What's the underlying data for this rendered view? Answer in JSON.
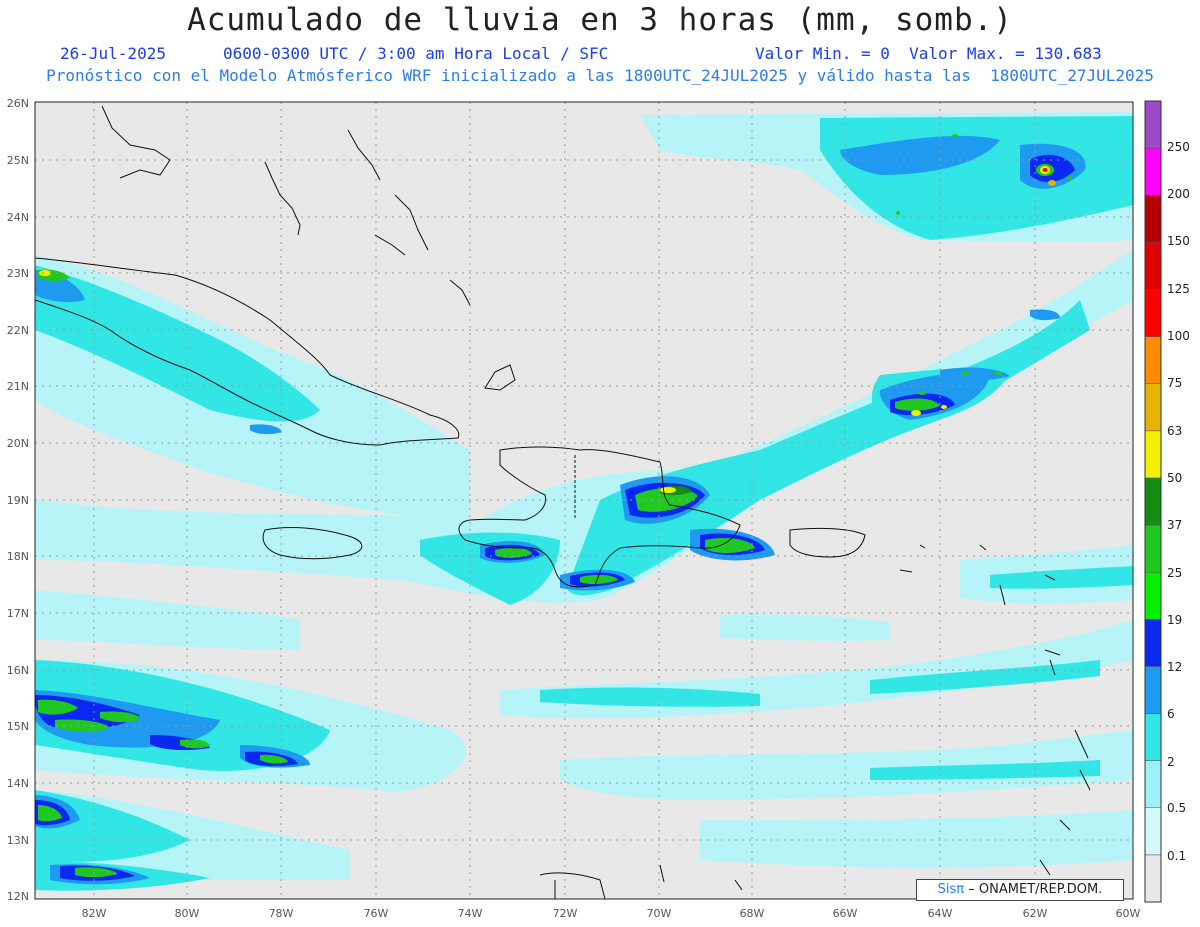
{
  "map": {
    "title": "Acumulado de lluvia en 3 horas (mm, somb.)",
    "date": "26-Jul-2025",
    "valid_time": "0600-0300 UTC / 3:00 am Hora Local / SFC",
    "min_max": "Valor Min. = 0  Valor Max. = 130.683",
    "model_line": "Pronóstico con el Modelo Atmósferico WRF inicializado a las 1800UTC_24JUL2025 y válido hasta las  1800UTC_27JUL2025",
    "lat_labels": [
      "26N",
      "25N",
      "24N",
      "23N",
      "22N",
      "21N",
      "20N",
      "19N",
      "18N",
      "17N",
      "16N",
      "15N",
      "14N",
      "13N",
      "12N"
    ],
    "lon_labels": [
      "82W",
      "80W",
      "78W",
      "76W",
      "74W",
      "72W",
      "70W",
      "68W",
      "66W",
      "64W",
      "62W",
      "60W"
    ],
    "credit_brand": "Sisπ",
    "credit_text": "– ONAMET/REP.DOM."
  },
  "legend": {
    "levels": [
      "0.1",
      "0.5",
      "2",
      "6",
      "12",
      "19",
      "25",
      "37",
      "50",
      "63",
      "75",
      "100",
      "125",
      "150",
      "200",
      "250"
    ],
    "colors": [
      "#e8e8e8",
      "#d2fafa",
      "#9cf0f6",
      "#33e6e6",
      "#1e9bf0",
      "#0a28f0",
      "#00f000",
      "#22c822",
      "#148c14",
      "#f0f000",
      "#e6b400",
      "#ff8c00",
      "#ff0000",
      "#e10000",
      "#b40000",
      "#ff00ff",
      "#9b4bc8"
    ]
  }
}
